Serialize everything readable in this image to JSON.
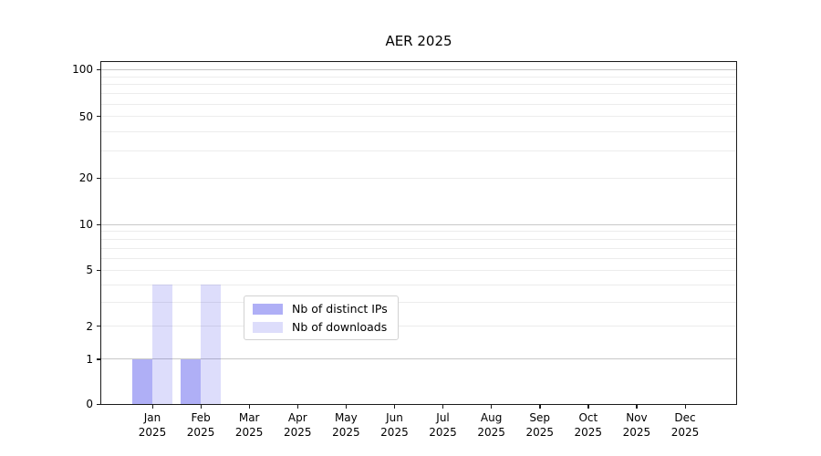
{
  "chart_data": {
    "type": "bar",
    "title": "AER 2025",
    "categories": [
      "Jan",
      "Feb",
      "Mar",
      "Apr",
      "May",
      "Jun",
      "Jul",
      "Aug",
      "Sep",
      "Oct",
      "Nov",
      "Dec"
    ],
    "year": "2025",
    "series": [
      {
        "name": "Nb of distinct IPs",
        "color": "rgba(25,25,230,0.35)",
        "solid_color": "#a8a8f5",
        "values": [
          1,
          1,
          0,
          0,
          0,
          0,
          0,
          0,
          0,
          0,
          0,
          0
        ]
      },
      {
        "name": "Nb of downloads",
        "color": "rgba(25,25,230,0.15)",
        "solid_color": "#dcdcf8",
        "values": [
          4,
          4,
          0,
          0,
          0,
          0,
          0,
          0,
          0,
          0,
          0,
          0
        ]
      }
    ],
    "xlabel": "",
    "ylabel": "",
    "yaxis": {
      "scale_type": "asinh",
      "linear_width": 1.4,
      "ymin": 0,
      "ymax": 112,
      "tick_values": [
        0,
        1,
        2,
        5,
        10,
        20,
        50,
        100
      ],
      "major_gridlines": [
        1,
        10,
        100
      ],
      "minor_gridlines": [
        2,
        3,
        4,
        5,
        6,
        7,
        8,
        9,
        20,
        30,
        40,
        50,
        60,
        70,
        80,
        90
      ]
    },
    "legend": {
      "entries": [
        "Nb of distinct IPs",
        "Nb of downloads"
      ],
      "position": "lower-center"
    },
    "colors": {
      "major_grid": "#c8c8c8",
      "minor_grid": "#ececec",
      "spine": "#1a1a1a",
      "text": "#000000",
      "background": "#ffffff"
    }
  }
}
